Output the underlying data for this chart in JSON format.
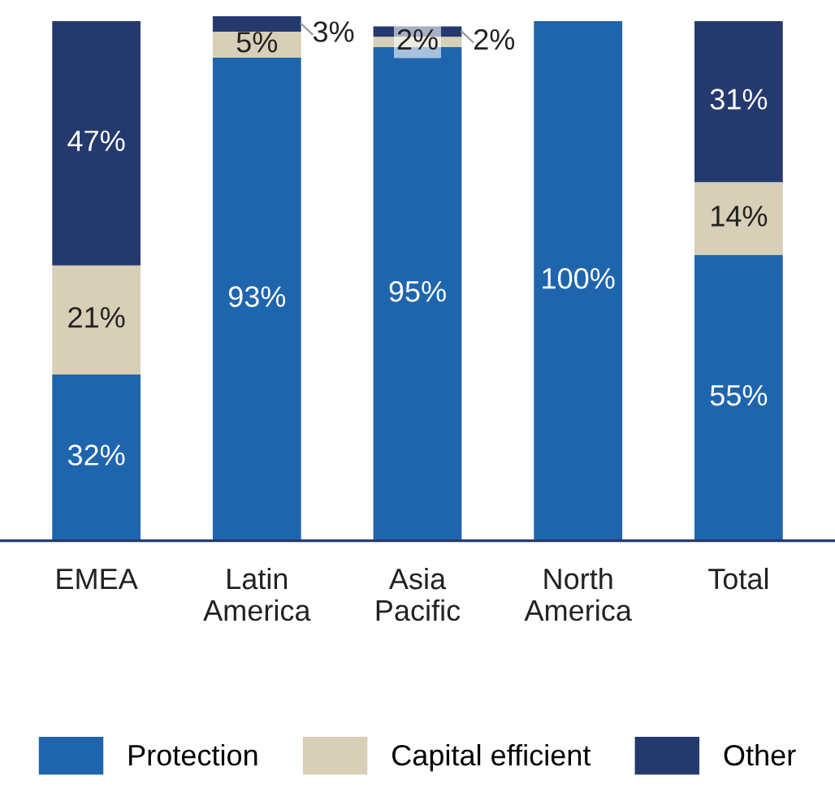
{
  "chart_data": {
    "type": "bar",
    "stacked": true,
    "categories": [
      "EMEA",
      "Latin\nAmerica",
      "Asia\nPacific",
      "North\nAmerica",
      "Total"
    ],
    "series": [
      {
        "name": "Protection",
        "color": "#1f65ae",
        "values": [
          32,
          93,
          95,
          100,
          55
        ],
        "value_labels": [
          "32%",
          "93%",
          "95%",
          "100%",
          "55%"
        ]
      },
      {
        "name": "Capital efficient",
        "color": "#d7cfb6",
        "values": [
          21,
          5,
          2,
          0,
          14
        ],
        "value_labels": [
          "21%",
          "5%",
          "2%",
          null,
          "14%"
        ]
      },
      {
        "name": "Other",
        "color": "#243a6f",
        "values": [
          47,
          3,
          2,
          0,
          31
        ],
        "value_labels": [
          "47%",
          "3%",
          "2%",
          null,
          "31%"
        ]
      }
    ],
    "ylim": [
      0,
      101
    ],
    "grid": false,
    "legend": "bottom"
  }
}
